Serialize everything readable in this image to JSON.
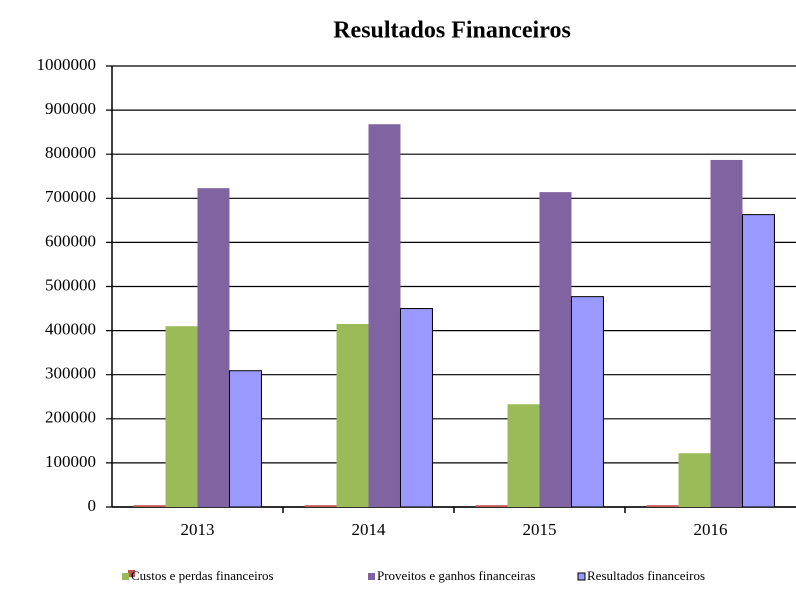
{
  "chart_data": {
    "type": "bar",
    "title": "Resultados Financeiros",
    "categories": [
      "2013",
      "2014",
      "2015",
      "2016"
    ],
    "series": [
      {
        "color": "#c0504d",
        "values": [
          4000,
          4000,
          4000,
          4000
        ]
      },
      {
        "name": "Custos e perdas financeiros",
        "color": "#9bbb59",
        "values": [
          410000,
          415000,
          233000,
          122000
        ]
      },
      {
        "name": "Proveitos e ganhos financeiras",
        "color": "#8064a2",
        "values": [
          723000,
          868000,
          714000,
          787000
        ]
      },
      {
        "name": "Resultados financeiros",
        "color": "#9999ff",
        "values": [
          309000,
          450000,
          477000,
          663000
        ]
      }
    ],
    "ylim": [
      0,
      1000000
    ],
    "yticks": [
      0,
      100000,
      200000,
      300000,
      400000,
      500000,
      600000,
      700000,
      800000,
      900000,
      1000000
    ],
    "grid": true
  }
}
